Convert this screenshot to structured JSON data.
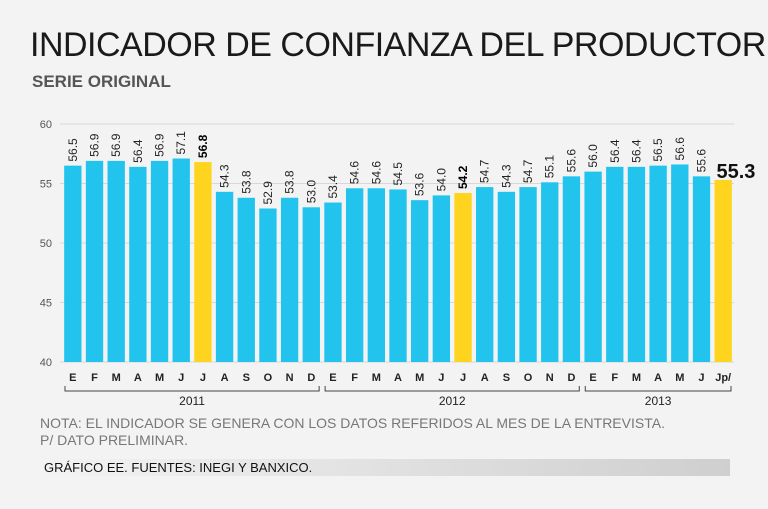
{
  "title": "INDICADOR DE CONFIANZA DEL PRODUCTOR",
  "subtitle": "SERIE ORIGINAL",
  "note_line1": "NOTA:  EL INDICADOR SE GENERA CON LOS DATOS REFERIDOS AL MES DE LA ENTREVISTA.",
  "note_line2": "P/ DATO PRELIMINAR.",
  "source": "GRÁFICO EE. FUENTES: INEGI Y BANXICO.",
  "colors": {
    "bar": "#22c4ee",
    "highlight": "#ffd41f",
    "grid": "#d7d7d7",
    "text": "#222222"
  },
  "chart_data": {
    "type": "bar",
    "title": "INDICADOR DE CONFIANZA DEL PRODUCTOR",
    "subtitle": "SERIE ORIGINAL",
    "ylim": [
      40,
      60
    ],
    "yticks": [
      40,
      45,
      50,
      55,
      60
    ],
    "grid": true,
    "categories": [
      "E",
      "F",
      "M",
      "A",
      "M",
      "J",
      "J",
      "A",
      "S",
      "O",
      "N",
      "D",
      "E",
      "F",
      "M",
      "A",
      "M",
      "J",
      "J",
      "A",
      "S",
      "O",
      "N",
      "D",
      "E",
      "F",
      "M",
      "A",
      "M",
      "J",
      "Jp/"
    ],
    "values": [
      56.5,
      56.9,
      56.9,
      56.4,
      56.9,
      57.1,
      56.8,
      54.3,
      53.8,
      52.9,
      53.8,
      53.0,
      53.4,
      54.6,
      54.6,
      54.5,
      53.6,
      54.0,
      54.2,
      54.7,
      54.3,
      54.7,
      55.1,
      55.6,
      56.0,
      56.4,
      56.4,
      56.5,
      56.6,
      55.6,
      55.3
    ],
    "labels": [
      "56.5",
      "56.9",
      "56.9",
      "56.4",
      "56.9",
      "57.1",
      "56.8",
      "54.3",
      "53.8",
      "52.9",
      "53.8",
      "53.0",
      "53.4",
      "54.6",
      "54.6",
      "54.5",
      "53.6",
      "54.0",
      "54.2",
      "54.7",
      "54.3",
      "54.7",
      "55.1",
      "55.6",
      "56.0",
      "56.4",
      "56.4",
      "56.5",
      "56.6",
      "55.6",
      "55.3"
    ],
    "highlighted": [
      6,
      18,
      30
    ],
    "years": [
      {
        "label": "2011",
        "start": 0,
        "end": 11
      },
      {
        "label": "2012",
        "start": 12,
        "end": 23
      },
      {
        "label": "2013",
        "start": 24,
        "end": 30
      }
    ]
  }
}
